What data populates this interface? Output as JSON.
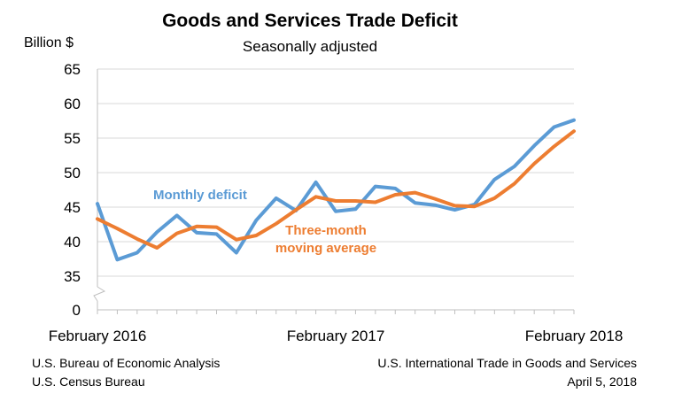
{
  "chart_data": {
    "type": "line",
    "title": "Goods and Services Trade Deficit",
    "subtitle": "Seasonally adjusted",
    "ylabel": "Billion $",
    "xlabel": "",
    "ylim": [
      35,
      65
    ],
    "yticks": [
      0,
      35,
      40,
      45,
      50,
      55,
      60,
      65
    ],
    "axis_break": true,
    "grid": true,
    "x": [
      "Feb 2016",
      "Mar 2016",
      "Apr 2016",
      "May 2016",
      "Jun 2016",
      "Jul 2016",
      "Aug 2016",
      "Sep 2016",
      "Oct 2016",
      "Nov 2016",
      "Dec 2016",
      "Jan 2017",
      "Feb 2017",
      "Mar 2017",
      "Apr 2017",
      "May 2017",
      "Jun 2017",
      "Jul 2017",
      "Aug 2017",
      "Sep 2017",
      "Oct 2017",
      "Nov 2017",
      "Dec 2017",
      "Jan 2018",
      "Feb 2018"
    ],
    "x_tick_labels": [
      {
        "index": 0,
        "label": "February 2016"
      },
      {
        "index": 12,
        "label": "February 2017"
      },
      {
        "index": 24,
        "label": "February 2018"
      }
    ],
    "series": [
      {
        "name": "Monthly deficit",
        "color": "#5b9bd5",
        "values": [
          45.5,
          37.4,
          38.4,
          41.4,
          43.8,
          41.3,
          41.1,
          38.4,
          43.1,
          46.3,
          44.5,
          48.6,
          44.4,
          44.7,
          48.0,
          47.7,
          45.6,
          45.3,
          44.6,
          45.4,
          49.0,
          50.9,
          53.9,
          56.6,
          57.6
        ]
      },
      {
        "name": "Three-month moving average",
        "color": "#ed7d31",
        "values": [
          43.3,
          41.9,
          40.4,
          39.1,
          41.2,
          42.2,
          42.1,
          40.3,
          40.9,
          42.6,
          44.6,
          46.5,
          45.9,
          45.9,
          45.7,
          46.8,
          47.1,
          46.2,
          45.2,
          45.1,
          46.3,
          48.4,
          51.3,
          53.8,
          56.0
        ]
      }
    ],
    "annotations": {
      "monthly": "Monthly deficit",
      "average_line1": "Three-month",
      "average_line2": "moving average"
    }
  },
  "footer": {
    "source_line1": "U.S. Bureau of Economic Analysis",
    "source_line2": "U.S. Census Bureau",
    "release_line1": "U.S. International Trade in Goods and Services",
    "release_line2": "April 5, 2018"
  }
}
